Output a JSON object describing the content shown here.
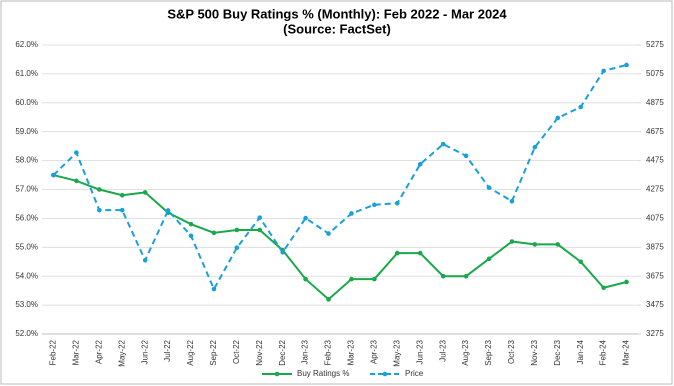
{
  "chart_data": {
    "type": "line",
    "title": "S&P 500 Buy Ratings % (Monthly):  Feb 2022 - Mar 2024",
    "subtitle": "(Source: FactSet)",
    "categories": [
      "Feb-22",
      "Mar-22",
      "Apr-22",
      "May-22",
      "Jun-22",
      "Jul-22",
      "Aug-22",
      "Sep-22",
      "Oct-22",
      "Nov-22",
      "Dec-22",
      "Jan-23",
      "Feb-23",
      "Mar-23",
      "Apr-23",
      "May-23",
      "Jun-23",
      "Jul-23",
      "Aug-23",
      "Sep-23",
      "Oct-23",
      "Nov-23",
      "Dec-23",
      "Jan-24",
      "Feb-24",
      "Mar-24"
    ],
    "series": [
      {
        "name": "Buy Ratings %",
        "color": "#1aa84b",
        "dashed": false,
        "values": [
          57.5,
          57.3,
          57.0,
          56.8,
          56.9,
          56.2,
          55.8,
          55.5,
          55.6,
          55.6,
          54.9,
          53.9,
          53.2,
          53.9,
          53.9,
          54.8,
          54.8,
          54.0,
          54.0,
          54.6,
          55.2,
          55.1,
          55.1,
          54.5,
          53.6,
          53.8
        ]
      },
      {
        "name": "Price",
        "color": "#1aa0d8",
        "dashed": true,
        "axis": "y2",
        "values": [
          4374,
          4530,
          4132,
          4132,
          3785,
          4130,
          3955,
          3586,
          3872,
          4080,
          3840,
          4077,
          3970,
          4109,
          4169,
          4180,
          4450,
          4589,
          4508,
          4288,
          4194,
          4568,
          4770,
          4846,
          5096,
          5137
        ]
      }
    ],
    "ylim": [
      52,
      62
    ],
    "yticks": [
      {
        "value": 52,
        "label": "52.0%"
      },
      {
        "value": 53,
        "label": "53.0%"
      },
      {
        "value": 54,
        "label": "54.0%"
      },
      {
        "value": 55,
        "label": "55.0%"
      },
      {
        "value": 56,
        "label": "56.0%"
      },
      {
        "value": 57,
        "label": "57.0%"
      },
      {
        "value": 58,
        "label": "58.0%"
      },
      {
        "value": 59,
        "label": "59.0%"
      },
      {
        "value": 60,
        "label": "60.0%"
      },
      {
        "value": 61,
        "label": "61.0%"
      },
      {
        "value": 62,
        "label": "62.0%"
      }
    ],
    "y2lim": [
      3275,
      5275
    ],
    "y2ticks": [
      3275,
      3475,
      3675,
      3875,
      4075,
      4275,
      4475,
      4675,
      4875,
      5075,
      5275
    ],
    "grid": true,
    "legend": "bottom"
  }
}
